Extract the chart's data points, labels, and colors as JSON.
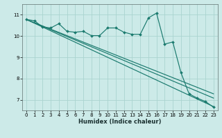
{
  "xlabel": "Humidex (Indice chaleur)",
  "bg_color": "#cceae8",
  "grid_color": "#aad4d0",
  "line_color": "#1a7a6e",
  "xlim": [
    -0.5,
    23.5
  ],
  "ylim": [
    6.5,
    11.5
  ],
  "x_ticks": [
    0,
    1,
    2,
    3,
    4,
    5,
    6,
    7,
    8,
    9,
    10,
    11,
    12,
    13,
    14,
    15,
    16,
    17,
    18,
    19,
    20,
    21,
    22,
    23
  ],
  "y_ticks": [
    7,
    8,
    9,
    10,
    11
  ],
  "main_line_x": [
    0,
    1,
    2,
    3,
    4,
    5,
    6,
    7,
    8,
    9,
    10,
    11,
    12,
    13,
    14,
    15,
    16,
    17,
    18,
    19,
    20,
    21,
    22,
    23
  ],
  "main_line_y": [
    10.78,
    10.72,
    10.42,
    10.38,
    10.58,
    10.22,
    10.18,
    10.22,
    10.02,
    10.02,
    10.38,
    10.38,
    10.18,
    10.08,
    10.08,
    10.85,
    11.08,
    9.62,
    9.72,
    8.28,
    7.28,
    7.08,
    6.92,
    6.65
  ],
  "trend1_x": [
    0,
    23
  ],
  "trend1_y": [
    10.78,
    6.68
  ],
  "trend2_x": [
    0,
    23
  ],
  "trend2_y": [
    10.78,
    7.08
  ],
  "trend3_x": [
    0,
    23
  ],
  "trend3_y": [
    10.78,
    7.28
  ]
}
